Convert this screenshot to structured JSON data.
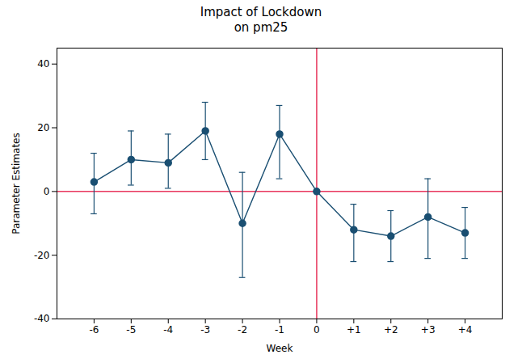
{
  "chart_data": {
    "type": "line",
    "title": "Impact of Lockdown\non pm25",
    "xlabel": "Week",
    "ylabel": "Parameter Estimates",
    "x": [
      -6,
      -5,
      -4,
      -3,
      -2,
      -1,
      0,
      1,
      2,
      3,
      4
    ],
    "values": [
      3,
      10,
      9,
      19,
      -10,
      18,
      0,
      -12,
      -14,
      -8,
      -13
    ],
    "error_lower": [
      10,
      8,
      8,
      9,
      17,
      14,
      0,
      10,
      8,
      13,
      8
    ],
    "error_upper": [
      9,
      9,
      9,
      9,
      16,
      9,
      0,
      8,
      8,
      12,
      8
    ],
    "color": "#1a4f72",
    "marker": "circle",
    "reference_lines": [
      {
        "axis": "y",
        "value": 0,
        "color": "#e8365d"
      },
      {
        "axis": "x",
        "value": 0,
        "color": "#e8365d"
      }
    ],
    "xlim": [
      -7,
      5
    ],
    "xticks": [
      -6,
      -5,
      -4,
      -3,
      -2,
      -1,
      0,
      {
        "value": 1,
        "label": "+1"
      },
      {
        "value": 2,
        "label": "+2"
      },
      {
        "value": 3,
        "label": "+3"
      },
      {
        "value": 4,
        "label": "+4"
      }
    ],
    "ylim": [
      -40,
      45
    ],
    "yticks": [
      -40,
      -20,
      0,
      20,
      40
    ],
    "grid": false
  }
}
